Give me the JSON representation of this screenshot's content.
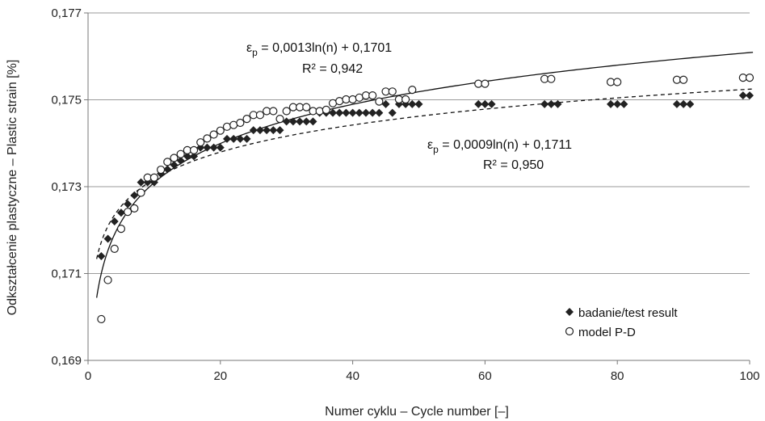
{
  "chart_data": {
    "type": "scatter",
    "xlabel": "Numer cyklu – Cycle number [–]",
    "ylabel": "Odkształcenie plastyczne – Plastic strain [%]",
    "xlim": [
      0,
      100
    ],
    "ylim": [
      0.169,
      0.177
    ],
    "x_ticks": [
      0,
      20,
      40,
      60,
      80,
      100
    ],
    "x_tick_labels": [
      "0",
      "20",
      "40",
      "60",
      "80",
      "100"
    ],
    "y_ticks": [
      0.169,
      0.171,
      0.173,
      0.175,
      0.177
    ],
    "y_tick_labels": [
      "0,169",
      "0,171",
      "0,173",
      "0,175",
      "0,177"
    ],
    "grid": "horizontal",
    "legend_position": "bottom-right",
    "series": [
      {
        "name": "badanie/test result",
        "marker": "diamond-filled",
        "color": "#222222",
        "x": [
          2,
          3,
          4,
          5,
          6,
          7,
          8,
          9,
          10,
          11,
          12,
          13,
          14,
          15,
          16,
          17,
          18,
          19,
          20,
          21,
          22,
          23,
          24,
          25,
          26,
          27,
          28,
          29,
          30,
          31,
          32,
          33,
          34,
          35,
          36,
          37,
          38,
          39,
          40,
          41,
          42,
          43,
          44,
          45,
          46,
          47,
          48,
          49,
          50,
          59,
          60,
          61,
          69,
          70,
          71,
          79,
          80,
          81,
          89,
          90,
          91,
          99,
          100
        ],
        "y": [
          0.1714,
          0.1718,
          0.1722,
          0.1724,
          0.1726,
          0.1728,
          0.1731,
          0.1731,
          0.1731,
          0.1733,
          0.1734,
          0.1735,
          0.1736,
          0.1737,
          0.1737,
          0.1739,
          0.1739,
          0.1739,
          0.1739,
          0.1741,
          0.1741,
          0.1741,
          0.1741,
          0.1743,
          0.1743,
          0.1743,
          0.1743,
          0.1743,
          0.1745,
          0.1745,
          0.1745,
          0.1745,
          0.1745,
          0.1747,
          0.1747,
          0.1747,
          0.1747,
          0.1747,
          0.1747,
          0.1747,
          0.1747,
          0.1747,
          0.1747,
          0.1749,
          0.1747,
          0.1749,
          0.1749,
          0.1749,
          0.1749,
          0.1749,
          0.1749,
          0.1749,
          0.1749,
          0.1749,
          0.1749,
          0.1749,
          0.1749,
          0.1749,
          0.1749,
          0.1749,
          0.1749,
          0.1751,
          0.1751
        ]
      },
      {
        "name": "model P-D",
        "marker": "circle-open",
        "color": "#222222",
        "x": [
          2,
          3,
          4,
          5,
          6,
          7,
          8,
          9,
          10,
          11,
          12,
          13,
          14,
          15,
          16,
          17,
          18,
          19,
          20,
          21,
          22,
          23,
          24,
          25,
          26,
          27,
          28,
          29,
          30,
          31,
          32,
          33,
          34,
          35,
          36,
          37,
          38,
          39,
          40,
          41,
          42,
          43,
          44,
          45,
          46,
          47,
          48,
          49,
          59,
          60,
          69,
          70,
          79,
          80,
          89,
          90,
          99,
          100
        ],
        "y": [
          0.16995,
          0.17085,
          0.17157,
          0.17203,
          0.17242,
          0.1725,
          0.17286,
          0.17321,
          0.17321,
          0.17339,
          0.17357,
          0.17366,
          0.17375,
          0.17384,
          0.17384,
          0.17402,
          0.17411,
          0.1742,
          0.17429,
          0.17438,
          0.17442,
          0.17447,
          0.17456,
          0.17465,
          0.17465,
          0.17474,
          0.17474,
          0.17456,
          0.17474,
          0.17483,
          0.17483,
          0.17483,
          0.17474,
          0.17474,
          0.17477,
          0.17492,
          0.17497,
          0.17501,
          0.17501,
          0.17505,
          0.1751,
          0.1751,
          0.17496,
          0.17519,
          0.17519,
          0.17501,
          0.17501,
          0.17523,
          0.17537,
          0.17537,
          0.17548,
          0.17548,
          0.17541,
          0.17541,
          0.17546,
          0.17546,
          0.17551,
          0.17551
        ]
      }
    ],
    "trendlines": [
      {
        "series": "model P-D",
        "style": "solid",
        "a": 0.0013,
        "b": 0.1701,
        "x_start": 1.3,
        "x_end": 100.5
      },
      {
        "series": "badanie/test result",
        "style": "dashed",
        "a": 0.0009,
        "b": 0.1711,
        "x_start": 1.3,
        "x_end": 100.5
      }
    ],
    "annotations": [
      {
        "id": "model",
        "eps": "ε",
        "sub": "p",
        "equation": " = 0,0013ln(n) + 0,1701",
        "r2": "R² = 0,942"
      },
      {
        "id": "test",
        "eps": "ε",
        "sub": "p",
        "equation": " = 0,0009ln(n) + 0,1711",
        "r2": "R² = 0,950"
      }
    ],
    "legend": [
      {
        "marker": "diamond-filled",
        "label": "badanie/test result"
      },
      {
        "marker": "circle-open",
        "label": "model P-D"
      }
    ]
  }
}
